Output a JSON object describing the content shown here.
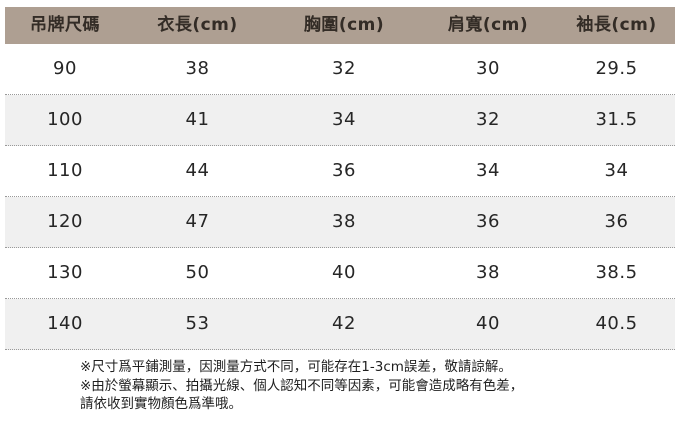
{
  "table": {
    "headers": [
      "吊牌尺碼",
      "衣長(cm)",
      "胸圍(cm)",
      "肩寬(cm)",
      "袖長(cm)"
    ],
    "rows": [
      [
        "90",
        "38",
        "32",
        "30",
        "29.5"
      ],
      [
        "100",
        "41",
        "34",
        "32",
        "31.5"
      ],
      [
        "110",
        "44",
        "36",
        "34",
        "34"
      ],
      [
        "120",
        "47",
        "38",
        "36",
        "36"
      ],
      [
        "130",
        "50",
        "40",
        "38",
        "38.5"
      ],
      [
        "140",
        "53",
        "42",
        "40",
        "40.5"
      ]
    ]
  },
  "notes": {
    "lines": [
      "※尺寸爲平鋪測量，因測量方式不同，可能存在1-3cm誤差，敬請諒解。",
      "※由於螢幕顯示、拍攝光線、個人認知不同等因素，可能會造成略有色差，",
      "請依收到實物顏色爲準哦。"
    ]
  },
  "colors": {
    "header_bg": "#ae9f92",
    "header_text": "#332c26",
    "row_alt_bg": "#f0f0f0",
    "divider": "#999999",
    "data_text": "#262626"
  }
}
